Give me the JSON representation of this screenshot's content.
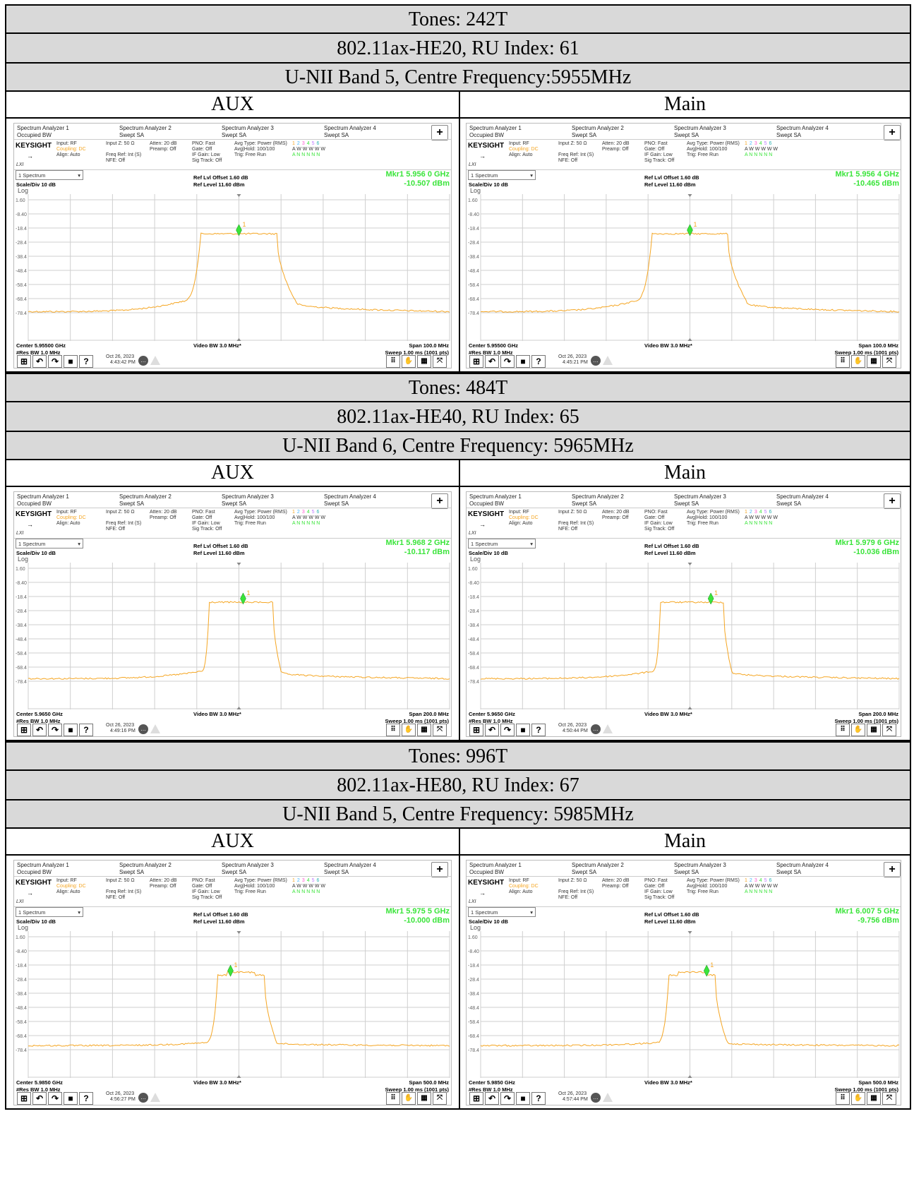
{
  "sections": [
    {
      "tones": "Tones: 242T",
      "mode": "802.11ax-HE20, RU Index: 61",
      "band": "U-NII Band 5, Centre Frequency:5955MHz",
      "panels": [
        {
          "label": "AUX",
          "mkr_freq": "Mkr1  5.956 0 GHz",
          "mkr_amp": "-10.507 dBm",
          "center": "Center 5.95500 GHz",
          "span": "Span 100.0 MHz",
          "date": "Oct 26, 2023",
          "time": "4:43:42 PM"
        },
        {
          "label": "Main",
          "mkr_freq": "Mkr1  5.956 4 GHz",
          "mkr_amp": "-10.465 dBm",
          "center": "Center 5.95500 GHz",
          "span": "Span 100.0 MHz",
          "date": "Oct 26, 2023",
          "time": "4:45:21 PM"
        }
      ]
    },
    {
      "tones": "Tones: 484T",
      "mode": "802.11ax-HE40, RU Index: 65",
      "band": "U-NII Band 6, Centre Frequency: 5965MHz",
      "panels": [
        {
          "label": "AUX",
          "mkr_freq": "Mkr1  5.968 2 GHz",
          "mkr_amp": "-10.117 dBm",
          "center": "Center 5.9650 GHz",
          "span": "Span 200.0 MHz",
          "date": "Oct 26, 2023",
          "time": "4:49:16 PM"
        },
        {
          "label": "Main",
          "mkr_freq": "Mkr1  5.979 6 GHz",
          "mkr_amp": "-10.036 dBm",
          "center": "Center 5.9650 GHz",
          "span": "Span 200.0 MHz",
          "date": "Oct 26, 2023",
          "time": "4:50:44 PM"
        }
      ]
    },
    {
      "tones": "Tones: 996T",
      "mode": "802.11ax-HE80, RU Index: 67",
      "band": "U-NII Band 5, Centre Frequency: 5985MHz",
      "panels": [
        {
          "label": "AUX",
          "mkr_freq": "Mkr1  5.975 5 GHz",
          "mkr_amp": "-10.000 dBm",
          "center": "Center 5.9850 GHz",
          "span": "Span 500.0 MHz",
          "date": "Oct 26, 2023",
          "time": "4:56:27 PM"
        },
        {
          "label": "Main",
          "mkr_freq": "Mkr1  6.007 5 GHz",
          "mkr_amp": "-9.756 dBm",
          "center": "Center 5.9850 GHz",
          "span": "Span 500.0 MHz",
          "date": "Oct 26, 2023",
          "time": "4:57:44 PM"
        }
      ]
    }
  ],
  "analyzer": {
    "tabs": [
      {
        "title": "Spectrum Analyzer 1",
        "sub": "Occupied BW"
      },
      {
        "title": "Spectrum Analyzer 2",
        "sub": "Swept SA"
      },
      {
        "title": "Spectrum Analyzer 3",
        "sub": "Swept SA"
      },
      {
        "title": "Spectrum Analyzer 4",
        "sub": "Swept SA"
      }
    ],
    "plus": "+",
    "logo": "KEYSIGHT",
    "lxi": "LXI",
    "input": "Input: RF",
    "coupling": "Coupling: DC",
    "align": "Align: Auto",
    "input_z": "Input Z: 50 Ω",
    "freq_ref": "Freq Ref: Int (S)",
    "nfe": "NFE: Off",
    "atten": "Atten: 20 dB",
    "preamp": "Preamp: Off",
    "pno": "PNO: Fast",
    "gate": "Gate: Off",
    "if_gain": "IF Gain: Low",
    "sig_track": "Sig Track: Off",
    "avg_type": "Avg Type: Power (RMS)",
    "avg_hold": "Avg|Hold: 100/100",
    "trig": "Trig: Free Run",
    "trace_nums": [
      "1",
      "2",
      "3",
      "4",
      "5",
      "6"
    ],
    "trace_row2": "A W W W W W",
    "trace_row3": "A N N N N N",
    "spectrum_sel": "1 Spectrum",
    "scale_div": "Scale/Div 10 dB",
    "log": "Log",
    "ref_offset": "Ref Lvl Offset 1.60 dB",
    "ref_level": "Ref Level 11.60 dBm",
    "y_ticks": [
      "1.60",
      "-8.40",
      "-18.4",
      "-28.4",
      "-38.4",
      "-48.4",
      "-58.4",
      "-68.4",
      "-78.4"
    ],
    "res_bw": "#Res BW 1.0 MHz",
    "video_bw": "Video BW 3.0 MHz*",
    "sweep": "Sweep 1.00 ms (1001 pts)",
    "marker_label": "1",
    "trace_color": "#f5a623",
    "marker_color": "#3ae43a"
  }
}
